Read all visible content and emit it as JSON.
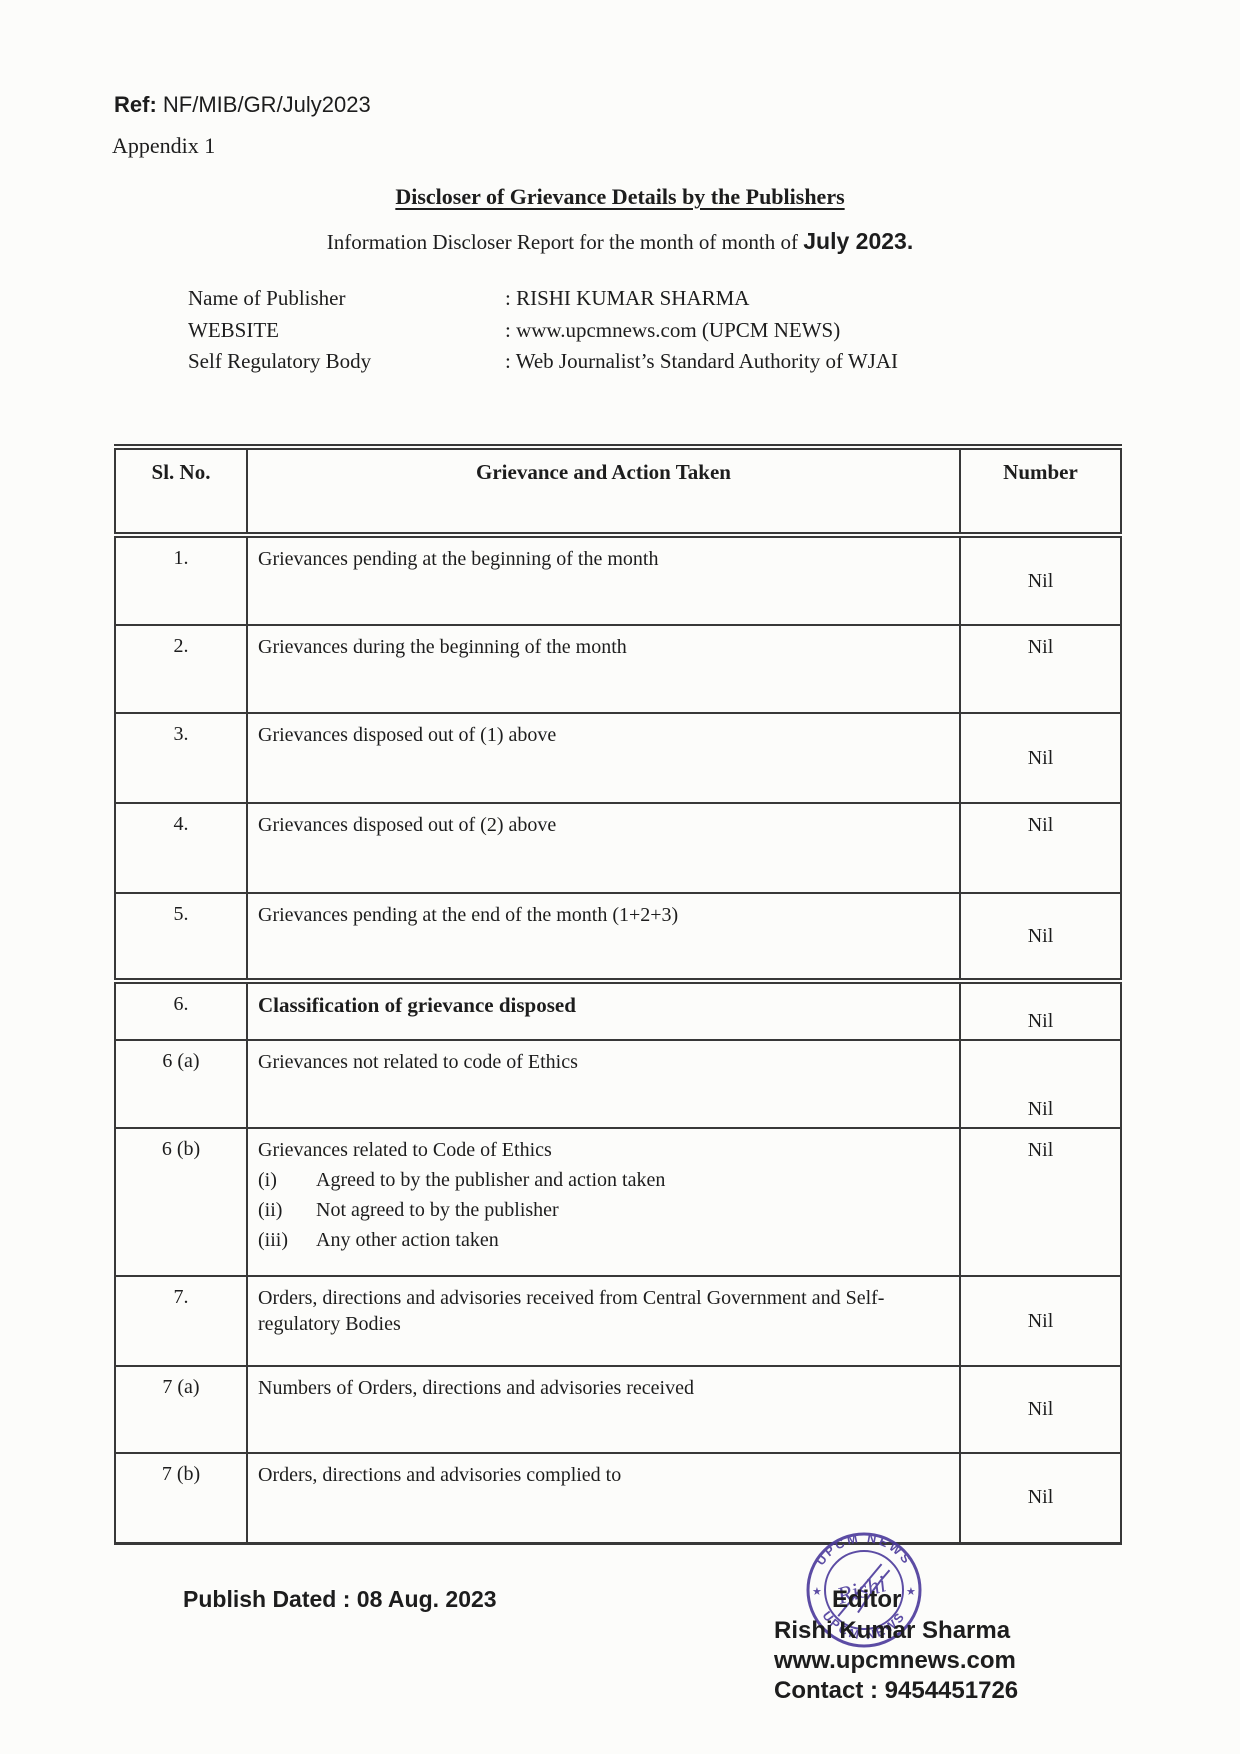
{
  "document": {
    "ref_label": "Ref:",
    "ref_value": "NF/MIB/GR/July2023",
    "appendix": "Appendix 1",
    "title": "Discloser of Grievance Details by the Publishers",
    "subtitle_prefix": "Information Discloser Report for the month of month of ",
    "subtitle_month": "July 2023.",
    "publisher": [
      {
        "label": "Name of Publisher",
        "value": ": RISHI KUMAR SHARMA"
      },
      {
        "label": "WEBSITE",
        "value": ": www.upcmnews.com (UPCM NEWS)"
      },
      {
        "label": "Self Regulatory Body",
        "value": ": Web Journalist’s Standard Authority of WJAI"
      }
    ]
  },
  "table": {
    "headers": [
      "Sl. No.",
      "Grievance and Action Taken",
      "Number"
    ],
    "rows": [
      {
        "sl": "1.",
        "grievance": "Grievances pending at the beginning of the month",
        "number": "Nil"
      },
      {
        "sl": "2.",
        "grievance": "Grievances during the beginning of the month",
        "number": "Nil"
      },
      {
        "sl": "3.",
        "grievance": "Grievances disposed out of (1) above",
        "number": "Nil"
      },
      {
        "sl": "4.",
        "grievance": "Grievances disposed out of (2) above",
        "number": "Nil"
      },
      {
        "sl": "5.",
        "grievance": "Grievances pending at the end of the month (1+2+3)",
        "number": "Nil"
      },
      {
        "sl": "6.",
        "grievance": "Classification of grievance disposed",
        "number": "Nil",
        "bold": true
      },
      {
        "sl": "6 (a)",
        "grievance": "Grievances not related to code of Ethics",
        "number": "Nil"
      },
      {
        "sl": "6 (b)",
        "grievance": "Grievances related to Code of Ethics",
        "number": "Nil",
        "sub_items": [
          {
            "marker": "(i)",
            "text": "Agreed to by the publisher and action taken"
          },
          {
            "marker": "(ii)",
            "text": "Not agreed to by the publisher"
          },
          {
            "marker": "(iii)",
            "text": "Any other action taken"
          }
        ]
      },
      {
        "sl": "7.",
        "grievance": "Orders, directions and advisories received from Central Government and Self- regulatory Bodies",
        "number": "Nil"
      },
      {
        "sl": "7 (a)",
        "grievance": "Numbers of Orders, directions and advisories received",
        "number": "Nil"
      },
      {
        "sl": "7 (b)",
        "grievance": "Orders, directions and advisories complied to",
        "number": "Nil"
      }
    ]
  },
  "footer": {
    "publish_line": "Publish Dated : 08 Aug. 2023",
    "designation": "Editor",
    "name": "Rishi Kumar Sharma",
    "website": "www.upcmnews.com",
    "contact": "Contact : 9454451726"
  },
  "stamp": {
    "top_text": "UPCM NEWS",
    "bottom_text": "UPCM NEWS",
    "left_star": "★",
    "right_star": "★",
    "signature": "Rishi",
    "ink_color": "#4b3a9b"
  }
}
